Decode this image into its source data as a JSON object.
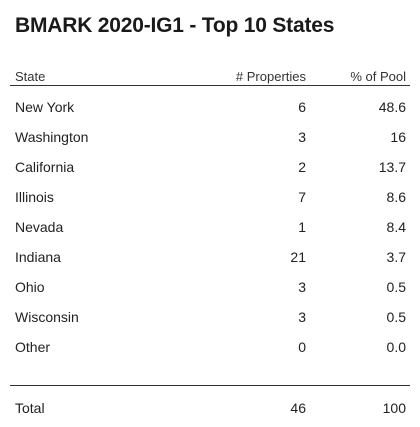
{
  "title": "BMARK 2020-IG1 - Top 10 States",
  "table": {
    "headers": {
      "state": "State",
      "properties": "# Properties",
      "pct_pool": "% of Pool"
    },
    "rows": [
      {
        "state": "New York",
        "properties": "6",
        "pct_pool": "48.6"
      },
      {
        "state": "Washington",
        "properties": "3",
        "pct_pool": "16"
      },
      {
        "state": "California",
        "properties": "2",
        "pct_pool": "13.7"
      },
      {
        "state": "Illinois",
        "properties": "7",
        "pct_pool": "8.6"
      },
      {
        "state": "Nevada",
        "properties": "1",
        "pct_pool": "8.4"
      },
      {
        "state": "Indiana",
        "properties": "21",
        "pct_pool": "3.7"
      },
      {
        "state": "Ohio",
        "properties": "3",
        "pct_pool": "0.5"
      },
      {
        "state": "Wisconsin",
        "properties": "3",
        "pct_pool": "0.5"
      },
      {
        "state": "Other",
        "properties": "0",
        "pct_pool": "0.0"
      }
    ],
    "total": {
      "state": "Total",
      "properties": "46",
      "pct_pool": "100"
    }
  }
}
